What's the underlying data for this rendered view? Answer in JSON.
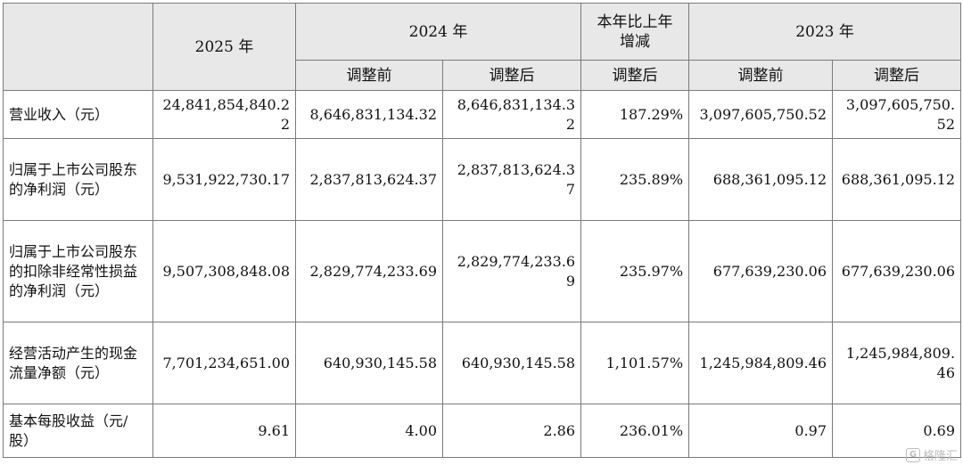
{
  "headers": {
    "y2025": "2025 年",
    "y2024": "2024 年",
    "yoy": "本年比上年增减",
    "y2023": "2023 年",
    "before": "调整前",
    "after": "调整后"
  },
  "rows": [
    {
      "label": "营业收入（元）",
      "v2025": "24,841,854,840.22",
      "v2024_before": "8,646,831,134.32",
      "v2024_after": "8,646,831,134.32",
      "yoy": "187.29%",
      "v2023_before": "3,097,605,750.52",
      "v2023_after": "3,097,605,750.52"
    },
    {
      "label": "归属于上市公司股东的净利润（元）",
      "v2025": "9,531,922,730.17",
      "v2024_before": "2,837,813,624.37",
      "v2024_after": "2,837,813,624.37",
      "yoy": "235.89%",
      "v2023_before": "688,361,095.12",
      "v2023_after": "688,361,095.12"
    },
    {
      "label": "归属于上市公司股东的扣除非经常性损益的净利润（元）",
      "v2025": "9,507,308,848.08",
      "v2024_before": "2,829,774,233.69",
      "v2024_after": "2,829,774,233.69",
      "yoy": "235.97%",
      "v2023_before": "677,639,230.06",
      "v2023_after": "677,639,230.06"
    },
    {
      "label": "经营活动产生的现金流量净额（元）",
      "v2025": "7,701,234,651.00",
      "v2024_before": "640,930,145.58",
      "v2024_after": "640,930,145.58",
      "yoy": "1,101.57%",
      "v2023_before": "1,245,984,809.46",
      "v2023_after": "1,245,984,809.46"
    },
    {
      "label": "基本每股收益（元/股）",
      "v2025": "9.61",
      "v2024_before": "4.00",
      "v2024_after": "2.86",
      "yoy": "236.01%",
      "v2023_before": "0.97",
      "v2023_after": "0.69"
    }
  ],
  "watermark": {
    "icon": "gelonghui-logo-icon",
    "text": "格隆汇"
  }
}
